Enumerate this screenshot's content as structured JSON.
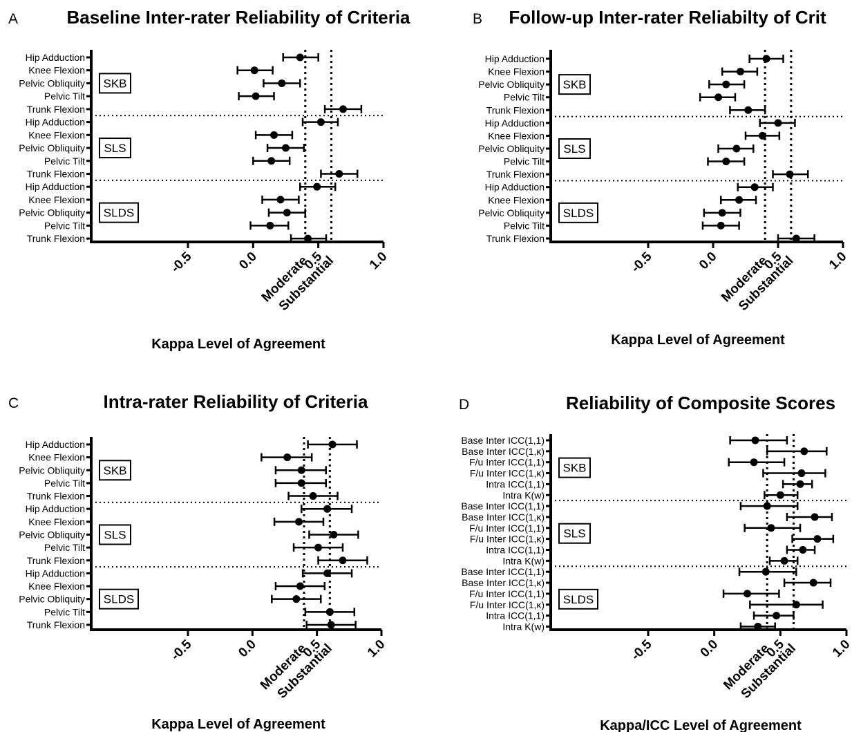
{
  "chart_data": [
    {
      "panel": "A",
      "type": "scatter",
      "title": "Baseline Inter-rater Reliability of Criteria",
      "xlabel": "Kappa Level of Agreement",
      "xlim": [
        -0.5,
        1.0
      ],
      "xticks": [
        -0.5,
        0.0,
        0.5,
        1.0
      ],
      "xtick_labels": [
        "-0.5",
        "0.0",
        "0.5",
        "1.0"
      ],
      "reference_lines": [
        {
          "value": 0.4,
          "label": "Moderate"
        },
        {
          "value": 0.6,
          "label": "Substantial"
        }
      ],
      "groups": [
        "SKB",
        "SLS",
        "SLDS"
      ],
      "categories": [
        "Hip Adduction",
        "Knee Flexion",
        "Pelvic Obliquity",
        "Pelvic Tilt",
        "Trunk Flexion",
        "Hip Adduction",
        "Knee Flexion",
        "Pelvic Obliquity",
        "Pelvic Tilt",
        "Trunk Flexion",
        "Hip Adduction",
        "Knee Flexion",
        "Pelvic Obliquity",
        "Pelvic Tilt",
        "Trunk Flexion"
      ],
      "estimate": [
        0.36,
        0.01,
        0.22,
        0.02,
        0.69,
        0.52,
        0.16,
        0.25,
        0.14,
        0.66,
        0.49,
        0.21,
        0.26,
        0.13,
        0.42
      ],
      "ci_low": [
        0.23,
        -0.12,
        0.08,
        -0.11,
        0.55,
        0.38,
        0.02,
        0.11,
        0.0,
        0.52,
        0.36,
        0.07,
        0.12,
        -0.02,
        0.29
      ],
      "ci_high": [
        0.5,
        0.15,
        0.36,
        0.16,
        0.83,
        0.65,
        0.3,
        0.39,
        0.28,
        0.8,
        0.63,
        0.35,
        0.4,
        0.27,
        0.56
      ]
    },
    {
      "panel": "B",
      "type": "scatter",
      "title": "Follow-up Inter-rater Reliabilty of Crit",
      "xlabel": "Kappa Level of Agreement",
      "xlim": [
        -0.5,
        1.0
      ],
      "xticks": [
        -0.5,
        0.0,
        0.5,
        1.0
      ],
      "xtick_labels": [
        "-0.5",
        "0.0",
        "0.5",
        "1.0"
      ],
      "reference_lines": [
        {
          "value": 0.4,
          "label": "Moderate"
        },
        {
          "value": 0.6,
          "label": "Substantial"
        }
      ],
      "groups": [
        "SKB",
        "SLS",
        "SLDS"
      ],
      "categories": [
        "Hip Adduction",
        "Knee Flexion",
        "Pelvic Obliquity",
        "Pelvic Tilt",
        "Trunk Flexion",
        "Hip Adduction",
        "Knee Flexion",
        "Pelvic Obliquity",
        "Pelvic Tilt",
        "Trunk Flexion",
        "Hip Adduction",
        "Knee Flexion",
        "Pelvic Obliquity",
        "Pelvic Tilt",
        "Trunk Flexion"
      ],
      "estimate": [
        0.41,
        0.21,
        0.1,
        0.04,
        0.27,
        0.5,
        0.38,
        0.18,
        0.1,
        0.59,
        0.32,
        0.2,
        0.07,
        0.06,
        0.64
      ],
      "ci_low": [
        0.28,
        0.07,
        -0.03,
        -0.1,
        0.13,
        0.36,
        0.25,
        0.04,
        -0.04,
        0.46,
        0.19,
        0.06,
        -0.07,
        -0.08,
        0.5
      ],
      "ci_high": [
        0.54,
        0.34,
        0.24,
        0.17,
        0.4,
        0.63,
        0.51,
        0.31,
        0.24,
        0.73,
        0.46,
        0.33,
        0.21,
        0.2,
        0.78
      ]
    },
    {
      "panel": "C",
      "type": "scatter",
      "title": "Intra-rater  Reliability  of Criteria",
      "xlabel": "Kappa Level of Agreement",
      "xlim": [
        -0.5,
        1.0
      ],
      "xticks": [
        -0.5,
        0.0,
        0.5,
        1.0
      ],
      "xtick_labels": [
        "-0.5",
        "0.0",
        "0.5",
        "1.0"
      ],
      "reference_lines": [
        {
          "value": 0.4,
          "label": "Moderate"
        },
        {
          "value": 0.6,
          "label": "Substantial"
        }
      ],
      "groups": [
        "SKB",
        "SLS",
        "SLDS"
      ],
      "categories": [
        "Hip Adduction",
        "Knee Flexion",
        "Pelvic Obliquity",
        "Pelvic Tilt",
        "Trunk Flexion",
        "Hip Adduction",
        "Knee Flexion",
        "Pelvic Obliquity",
        "Pelvic Tilt",
        "Trunk Flexion",
        "Hip Adduction",
        "Knee Flexion",
        "Pelvic Obliquity",
        "Pelvic Tilt",
        "Trunk Flexion"
      ],
      "estimate": [
        0.62,
        0.27,
        0.38,
        0.38,
        0.47,
        0.58,
        0.36,
        0.63,
        0.51,
        0.7,
        0.58,
        0.37,
        0.34,
        0.6,
        0.61
      ],
      "ci_low": [
        0.43,
        0.07,
        0.18,
        0.18,
        0.28,
        0.38,
        0.17,
        0.44,
        0.32,
        0.51,
        0.39,
        0.18,
        0.15,
        0.41,
        0.42
      ],
      "ci_high": [
        0.81,
        0.46,
        0.57,
        0.57,
        0.66,
        0.77,
        0.55,
        0.82,
        0.7,
        0.89,
        0.77,
        0.56,
        0.53,
        0.79,
        0.8
      ]
    },
    {
      "panel": "D",
      "type": "scatter",
      "title": "Reliability of Composite Scores",
      "xlabel": "Kappa/ICC Level of Agreement",
      "xlim": [
        -0.5,
        1.0
      ],
      "xticks": [
        -0.5,
        0.0,
        0.5,
        1.0
      ],
      "xtick_labels": [
        "-0.5",
        "0.0",
        "0.5",
        "1.0"
      ],
      "reference_lines": [
        {
          "value": 0.4,
          "label": "Moderate"
        },
        {
          "value": 0.6,
          "label": "Substantial"
        }
      ],
      "groups": [
        "SKB",
        "SLS",
        "SLDS"
      ],
      "categories": [
        "Base Inter ICC(1,1)",
        "Base Inter ICC(1,κ)",
        "F/u Inter ICC(1,1)",
        "F/u Inter ICC(1,κ)",
        "Intra ICC(1,1)",
        "Intra K(w)",
        "Base Inter ICC(1,1)",
        "Base Inter ICC(1,κ)",
        "F/u Inter ICC(1,1)",
        "F/u Inter ICC(1,κ)",
        "Intra ICC(1,1)",
        "Intra K(w)",
        "Base Inter ICC(1,1)",
        "Base Inter ICC(1,κ)",
        "F/u Inter ICC(1,1)",
        "F/u Inter ICC(1,κ)",
        "Intra ICC(1,1)",
        "Intra K(w)"
      ],
      "estimate": [
        0.31,
        0.68,
        0.3,
        0.66,
        0.65,
        0.5,
        0.4,
        0.76,
        0.43,
        0.78,
        0.67,
        0.53,
        0.39,
        0.75,
        0.25,
        0.62,
        0.47,
        0.33
      ],
      "ci_low": [
        0.12,
        0.4,
        0.11,
        0.37,
        0.52,
        0.38,
        0.2,
        0.55,
        0.23,
        0.59,
        0.55,
        0.42,
        0.19,
        0.53,
        0.07,
        0.27,
        0.3,
        0.2
      ],
      "ci_high": [
        0.55,
        0.85,
        0.53,
        0.84,
        0.74,
        0.63,
        0.63,
        0.89,
        0.65,
        0.9,
        0.76,
        0.63,
        0.62,
        0.88,
        0.49,
        0.82,
        0.6,
        0.46
      ]
    }
  ]
}
